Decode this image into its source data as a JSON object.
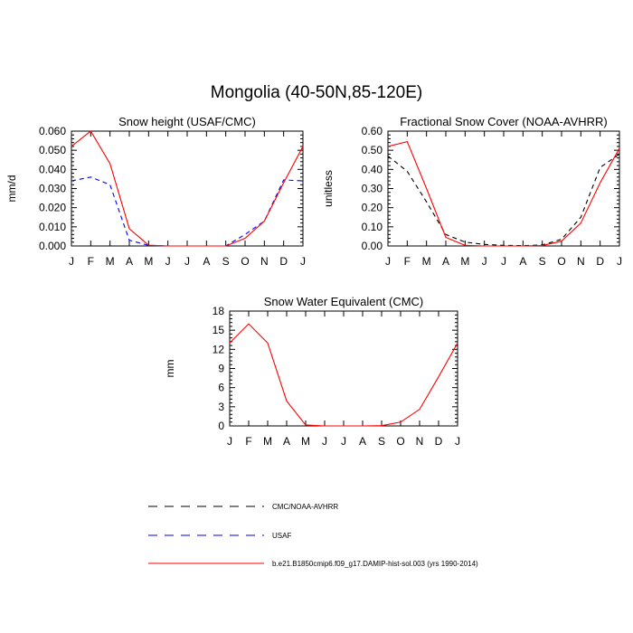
{
  "title": "Mongolia (40-50N,85-120E)",
  "legend": [
    {
      "name": "CMC/NOAA-AVHRR",
      "color": "#000000",
      "dash": "dashed"
    },
    {
      "name": "USAF",
      "color": "#0000ff",
      "dash": "dashed"
    },
    {
      "name": "b.e21.B1850cmip6.f09_g17.DAMIP-hist-sol.003 (yrs 1990-2014)",
      "color": "#ff0000",
      "dash": "solid"
    }
  ],
  "chart_data": [
    {
      "type": "line",
      "title": "Snow height (USAF/CMC)",
      "ylabel": "mm/d",
      "xlabel": "",
      "categories": [
        "J",
        "F",
        "M",
        "A",
        "M",
        "J",
        "J",
        "A",
        "S",
        "O",
        "N",
        "D",
        "J"
      ],
      "ylim": [
        0,
        0.06
      ],
      "yticks": [
        "0.000",
        "0.010",
        "0.020",
        "0.030",
        "0.040",
        "0.050",
        "0.060"
      ],
      "series": [
        {
          "name": "CMC/NOAA-AVHRR",
          "color": "#000000",
          "dash": "dashed",
          "values": [
            0,
            0,
            0,
            0,
            0,
            0,
            0,
            0,
            0,
            0,
            0,
            0,
            0
          ]
        },
        {
          "name": "USAF",
          "color": "#0000ff",
          "dash": "dashed",
          "values": [
            0.034,
            0.036,
            0.032,
            0.003,
            0.0003,
            0,
            0,
            0,
            0,
            0.006,
            0.013,
            0.0345,
            0.034
          ]
        },
        {
          "name": "b.e21.B1850cmip6.f09_g17.DAMIP-hist-sol.003 (yrs 1990-2014)",
          "color": "#ff0000",
          "dash": "solid",
          "values": [
            0.052,
            0.06,
            0.043,
            0.009,
            0.0004,
            0,
            0,
            0,
            0,
            0.004,
            0.013,
            0.033,
            0.052
          ]
        }
      ]
    },
    {
      "type": "line",
      "title": "Fractional Snow Cover (NOAA-AVHRR)",
      "ylabel": "unitless",
      "xlabel": "",
      "categories": [
        "J",
        "F",
        "M",
        "A",
        "M",
        "J",
        "J",
        "A",
        "S",
        "O",
        "N",
        "D",
        "J"
      ],
      "ylim": [
        0,
        0.6
      ],
      "yticks": [
        "0.00",
        "0.10",
        "0.20",
        "0.30",
        "0.40",
        "0.50",
        "0.60"
      ],
      "series": [
        {
          "name": "CMC/NOAA-AVHRR",
          "color": "#000000",
          "dash": "dashed",
          "values": [
            0.47,
            0.39,
            0.23,
            0.06,
            0.02,
            0.008,
            0.003,
            0.002,
            0.005,
            0.035,
            0.15,
            0.41,
            0.48
          ]
        },
        {
          "name": "b.e21.B1850cmip6.f09_g17.DAMIP-hist-sol.003 (yrs 1990-2014)",
          "color": "#ff0000",
          "dash": "solid",
          "values": [
            0.52,
            0.545,
            0.3,
            0.045,
            0.003,
            0,
            0,
            0,
            0.002,
            0.025,
            0.12,
            0.33,
            0.51
          ]
        }
      ]
    },
    {
      "type": "line",
      "title": "Snow Water Equivalent (CMC)",
      "ylabel": "mm",
      "xlabel": "",
      "categories": [
        "J",
        "F",
        "M",
        "A",
        "M",
        "J",
        "J",
        "A",
        "S",
        "O",
        "N",
        "D",
        "J"
      ],
      "ylim": [
        0,
        18
      ],
      "yticks": [
        "0",
        "3",
        "6",
        "9",
        "12",
        "15",
        "18"
      ],
      "series": [
        {
          "name": "CMC/NOAA-AVHRR",
          "color": "#000000",
          "dash": "dashed",
          "values": [
            0,
            0,
            0,
            0,
            0,
            0,
            0,
            0,
            0,
            0,
            0,
            0,
            0
          ]
        },
        {
          "name": "b.e21.B1850cmip6.f09_g17.DAMIP-hist-sol.003 (yrs 1990-2014)",
          "color": "#ff0000",
          "dash": "solid",
          "values": [
            13,
            16,
            13,
            3.9,
            0.15,
            0,
            0,
            0,
            0.05,
            0.6,
            2.6,
            7.7,
            13
          ]
        }
      ]
    }
  ]
}
